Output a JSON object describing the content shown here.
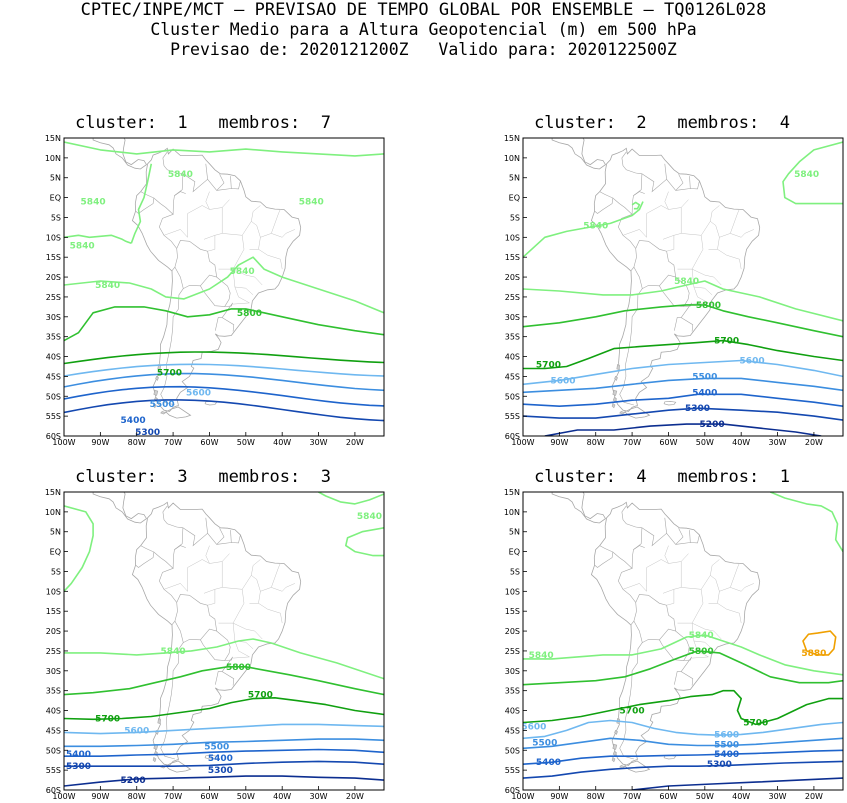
{
  "header": {
    "title": "CPTEC/INPE/MCT — PREVISAO DE TEMPO GLOBAL POR ENSEMBLE — TQ0126L028",
    "subtitle": "Cluster Medio para a Altura Geopotencial (m) em 500 hPa",
    "forecast_label": "Previsao de:",
    "forecast_time": "2020121200Z",
    "valid_label": "Valido para:",
    "valid_time": "2020122500Z"
  },
  "axes": {
    "y_ticks": [
      "15N",
      "10N",
      "5N",
      "EQ",
      "5S",
      "10S",
      "15S",
      "20S",
      "25S",
      "30S",
      "35S",
      "40S",
      "45S",
      "50S",
      "55S",
      "60S"
    ],
    "x_ticks": [
      "100W",
      "90W",
      "80W",
      "70W",
      "60W",
      "50W",
      "40W",
      "30W",
      "20W"
    ]
  },
  "colors": {
    "c5840": "#7ff07f",
    "c5800": "#30c030",
    "c5700": "#10a010",
    "c5600": "#6fb8f0",
    "c5500": "#3c8ee0",
    "c5400": "#1e64cc",
    "c5300": "#1448b0",
    "c5200": "#0c2e90",
    "c5880": "#f0a000",
    "coast": "#a8a8a8"
  },
  "panels": [
    {
      "title": "cluster:  1   membros:  7",
      "labels": [
        {
          "text": "5840",
          "lon": -68,
          "lat": 6,
          "level": "c5840"
        },
        {
          "text": "5840",
          "lon": -92,
          "lat": -1,
          "level": "c5840"
        },
        {
          "text": "5840",
          "lon": -32,
          "lat": -1,
          "level": "c5840"
        },
        {
          "text": "5840",
          "lon": -95,
          "lat": -12,
          "level": "c5840"
        },
        {
          "text": "5840",
          "lon": -51,
          "lat": -18.5,
          "level": "c5840"
        },
        {
          "text": "5840",
          "lon": -88,
          "lat": -22,
          "level": "c5840"
        },
        {
          "text": "5800",
          "lon": -49,
          "lat": -29,
          "level": "c5800"
        },
        {
          "text": "5700",
          "lon": -71,
          "lat": -44,
          "level": "c5700"
        },
        {
          "text": "5600",
          "lon": -63,
          "lat": -49,
          "level": "c5600"
        },
        {
          "text": "5500",
          "lon": -73,
          "lat": -52,
          "level": "c5500"
        },
        {
          "text": "5400",
          "lon": -81,
          "lat": -56,
          "level": "c5400"
        },
        {
          "text": "5300",
          "lon": -77,
          "lat": -59,
          "level": "c5300"
        }
      ]
    },
    {
      "title": "cluster:  2   membros:  4",
      "labels": [
        {
          "text": "5840",
          "lon": -22,
          "lat": 6,
          "level": "c5840"
        },
        {
          "text": "5840",
          "lon": -80,
          "lat": -7,
          "level": "c5840"
        },
        {
          "text": "5840",
          "lon": -55,
          "lat": -21,
          "level": "c5840"
        },
        {
          "text": "5800",
          "lon": -49,
          "lat": -27,
          "level": "c5800"
        },
        {
          "text": "5700",
          "lon": -44,
          "lat": -36,
          "level": "c5700"
        },
        {
          "text": "5700",
          "lon": -93,
          "lat": -42,
          "level": "c5700"
        },
        {
          "text": "5600",
          "lon": -37,
          "lat": -41,
          "level": "c5600"
        },
        {
          "text": "5600",
          "lon": -89,
          "lat": -46,
          "level": "c5600"
        },
        {
          "text": "5500",
          "lon": -50,
          "lat": -45,
          "level": "c5500"
        },
        {
          "text": "5400",
          "lon": -50,
          "lat": -49,
          "level": "c5400"
        },
        {
          "text": "5300",
          "lon": -52,
          "lat": -53,
          "level": "c5300"
        },
        {
          "text": "5200",
          "lon": -48,
          "lat": -57,
          "level": "c5200"
        }
      ]
    },
    {
      "title": "cluster:  3   membros:  3",
      "labels": [
        {
          "text": "5840",
          "lon": -16,
          "lat": 9,
          "level": "c5840"
        },
        {
          "text": "5840",
          "lon": -70,
          "lat": -25,
          "level": "c5840"
        },
        {
          "text": "5800",
          "lon": -52,
          "lat": -29,
          "level": "c5800"
        },
        {
          "text": "5700",
          "lon": -46,
          "lat": -36,
          "level": "c5700"
        },
        {
          "text": "5700",
          "lon": -88,
          "lat": -42,
          "level": "c5700"
        },
        {
          "text": "5600",
          "lon": -80,
          "lat": -45,
          "level": "c5600"
        },
        {
          "text": "5500",
          "lon": -58,
          "lat": -49,
          "level": "c5500"
        },
        {
          "text": "5400",
          "lon": -57,
          "lat": -52,
          "level": "c5400"
        },
        {
          "text": "5400",
          "lon": -96,
          "lat": -51,
          "level": "c5400"
        },
        {
          "text": "5300",
          "lon": -96,
          "lat": -54,
          "level": "c5300"
        },
        {
          "text": "5300",
          "lon": -57,
          "lat": -55,
          "level": "c5300"
        },
        {
          "text": "5200",
          "lon": -81,
          "lat": -57.5,
          "level": "c5200"
        }
      ]
    },
    {
      "title": "cluster:  4   membros:  1",
      "labels": [
        {
          "text": "5880",
          "lon": -20,
          "lat": -25.5,
          "level": "c5880"
        },
        {
          "text": "5840",
          "lon": -51,
          "lat": -21,
          "level": "c5840"
        },
        {
          "text": "5840",
          "lon": -95,
          "lat": -26,
          "level": "c5840"
        },
        {
          "text": "5800",
          "lon": -51,
          "lat": -25,
          "level": "c5800"
        },
        {
          "text": "5700",
          "lon": -70,
          "lat": -40,
          "level": "c5700"
        },
        {
          "text": "5700",
          "lon": -36,
          "lat": -43,
          "level": "c5700"
        },
        {
          "text": "5600",
          "lon": -97,
          "lat": -44,
          "level": "c5600"
        },
        {
          "text": "5600",
          "lon": -44,
          "lat": -46,
          "level": "c5600"
        },
        {
          "text": "5500",
          "lon": -94,
          "lat": -48,
          "level": "c5500"
        },
        {
          "text": "5500",
          "lon": -44,
          "lat": -48.5,
          "level": "c5500"
        },
        {
          "text": "5400",
          "lon": -44,
          "lat": -51,
          "level": "c5400"
        },
        {
          "text": "5400",
          "lon": -93,
          "lat": -53,
          "level": "c5400"
        },
        {
          "text": "5300",
          "lon": -46,
          "lat": -53.5,
          "level": "c5300"
        }
      ]
    }
  ]
}
